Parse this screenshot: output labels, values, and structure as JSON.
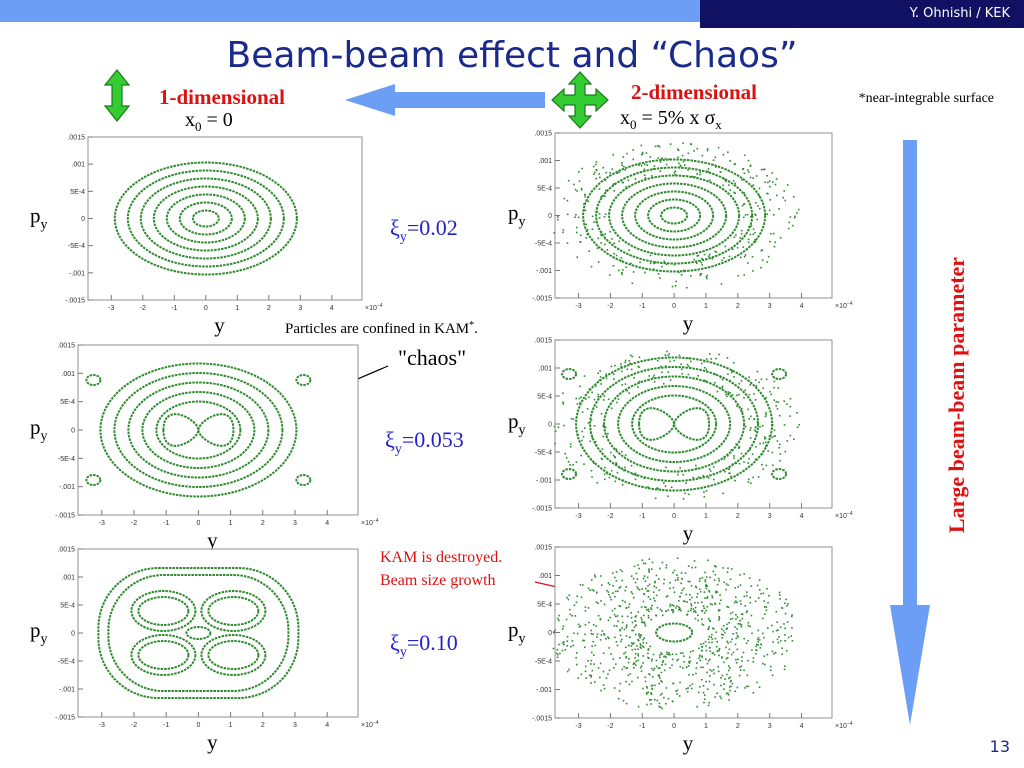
{
  "header": {
    "author": "Y. Ohnishi / KEK",
    "title": "Beam-beam effect and “Chaos”"
  },
  "left_heading": {
    "label": "1-dimensional",
    "cond_var": "x",
    "cond_sub": "0",
    "cond_rest": " = 0"
  },
  "right_heading": {
    "label": "2-dimensional",
    "cond_var": "x",
    "cond_sub": "0",
    "cond_rest": " = 5% x σ",
    "cond_sub2": "x"
  },
  "footnote": "*near-integrable surface",
  "side_label": "Large beam-beam parameter",
  "rows": [
    {
      "xi": "ξ",
      "xi_sub": "y",
      "xi_value": "=0.02"
    },
    {
      "xi": "ξ",
      "xi_sub": "y",
      "xi_value": "=0.053"
    },
    {
      "xi": "ξ",
      "xi_sub": "y",
      "xi_value": "=0.10"
    }
  ],
  "annotations": {
    "kam_confined": "Particles are confined in KAM",
    "kam_star": "*",
    "kam_period": ".",
    "chaos": "\"chaos\"",
    "kam_destroyed": "KAM is destroyed.",
    "beam_growth": "Beam size growth"
  },
  "axis": {
    "ylabel": "p",
    "ylabel_sub": "y",
    "xlabel": "y",
    "yticks": [
      ".0015",
      ".001",
      "5E-4",
      "0",
      "-5E-4",
      "-.001",
      "-.0015"
    ],
    "xticks": [
      "-3",
      "-2",
      "-1",
      "0",
      "1",
      "2",
      "3",
      "4"
    ],
    "x_multiplier": "×10",
    "x_exponent": "−4"
  },
  "page_number": "13"
}
